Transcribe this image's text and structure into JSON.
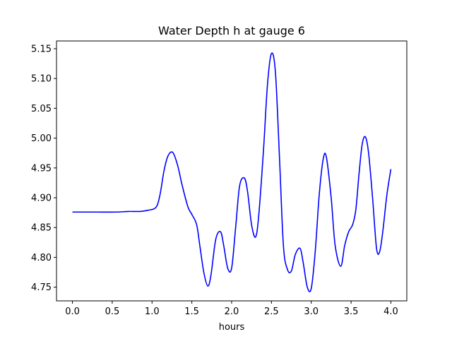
{
  "chart_data": {
    "type": "line",
    "title": "Water Depth h at gauge 6",
    "xlabel": "hours",
    "ylabel": "",
    "xlim": [
      -0.2,
      4.2
    ],
    "ylim": [
      4.727,
      5.163
    ],
    "xticks": [
      0.0,
      0.5,
      1.0,
      1.5,
      2.0,
      2.5,
      3.0,
      3.5,
      4.0
    ],
    "xtick_labels": [
      "0.0",
      "0.5",
      "1.0",
      "1.5",
      "2.0",
      "2.5",
      "3.0",
      "3.5",
      "4.0"
    ],
    "yticks": [
      4.75,
      4.8,
      4.85,
      4.9,
      4.95,
      5.0,
      5.05,
      5.1,
      5.15
    ],
    "ytick_labels": [
      "4.75",
      "4.80",
      "4.85",
      "4.90",
      "4.95",
      "5.00",
      "5.05",
      "5.10",
      "5.15"
    ],
    "grid": false,
    "colors": {
      "line": "#0000ff",
      "axes": "#000000",
      "background": "#ffffff"
    },
    "series": [
      {
        "x": [
          0.0,
          0.3,
          0.55,
          0.7,
          0.85,
          0.95,
          1.05,
          1.1,
          1.15,
          1.2,
          1.26,
          1.32,
          1.38,
          1.45,
          1.5,
          1.56,
          1.6,
          1.65,
          1.7,
          1.74,
          1.8,
          1.86,
          1.9,
          1.95,
          2.0,
          2.05,
          2.1,
          2.16,
          2.2,
          2.25,
          2.3,
          2.34,
          2.4,
          2.45,
          2.5,
          2.55,
          2.6,
          2.65,
          2.7,
          2.75,
          2.8,
          2.86,
          2.9,
          2.95,
          3.0,
          3.05,
          3.1,
          3.15,
          3.19,
          3.25,
          3.3,
          3.37,
          3.42,
          3.47,
          3.52,
          3.56,
          3.6,
          3.64,
          3.68,
          3.72,
          3.77,
          3.82,
          3.86,
          3.9,
          3.95,
          4.0
        ],
        "y": [
          4.876,
          4.876,
          4.876,
          4.877,
          4.877,
          4.879,
          4.884,
          4.905,
          4.945,
          4.97,
          4.976,
          4.955,
          4.92,
          4.885,
          4.872,
          4.855,
          4.82,
          4.775,
          4.752,
          4.77,
          4.83,
          4.843,
          4.82,
          4.782,
          4.782,
          4.85,
          4.92,
          4.933,
          4.91,
          4.855,
          4.834,
          4.87,
          4.98,
          5.09,
          5.142,
          5.11,
          4.97,
          4.82,
          4.78,
          4.777,
          4.805,
          4.815,
          4.79,
          4.75,
          4.748,
          4.81,
          4.905,
          4.965,
          4.968,
          4.9,
          4.82,
          4.785,
          4.82,
          4.843,
          4.855,
          4.88,
          4.94,
          4.99,
          5.002,
          4.975,
          4.9,
          4.815,
          4.81,
          4.845,
          4.905,
          4.948
        ]
      }
    ]
  }
}
